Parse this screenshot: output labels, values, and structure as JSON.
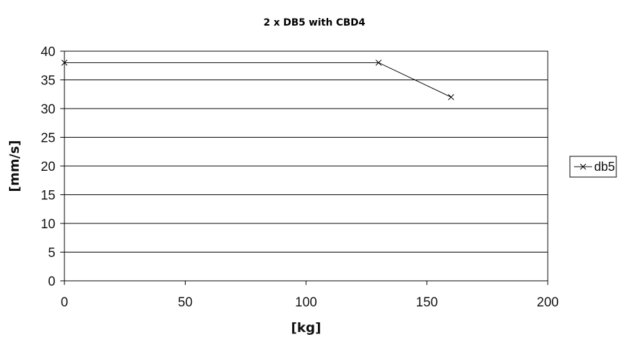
{
  "chart_data": {
    "type": "line",
    "title": "2 x DB5 with CBD4",
    "xlabel": "[kg]",
    "ylabel": "[mm/s]",
    "xlim": [
      0,
      200
    ],
    "ylim": [
      0,
      40
    ],
    "x_ticks": [
      0,
      50,
      100,
      150,
      200
    ],
    "y_ticks": [
      0,
      5,
      10,
      15,
      20,
      25,
      30,
      35,
      40
    ],
    "grid": "horizontal",
    "legend_position": "right",
    "series": [
      {
        "name": "db5",
        "color": "#000000",
        "marker": "x",
        "points": [
          {
            "x": 0,
            "y": 38
          },
          {
            "x": 130,
            "y": 38
          },
          {
            "x": 160,
            "y": 32
          }
        ]
      }
    ]
  }
}
